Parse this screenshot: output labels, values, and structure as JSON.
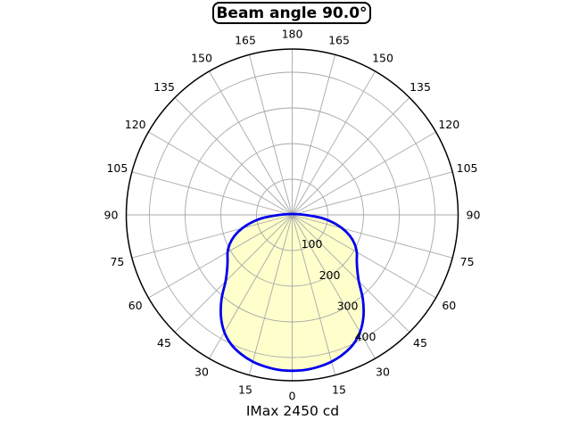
{
  "title_box": {
    "label": "Beam angle 90.0°"
  },
  "footer": {
    "label": "IMax 2450 cd"
  },
  "chart_data": {
    "type": "line",
    "subtype": "polar-photometric-distribution",
    "title": "Beam angle 90.0°",
    "annotation": "IMax 2450 cd",
    "imax_cd": 2450,
    "beam_angle_deg": 90.0,
    "angle_tick_step_deg": 15,
    "angle_labels_deg": [
      0,
      15,
      30,
      45,
      60,
      75,
      90,
      105,
      120,
      135,
      150,
      165,
      180
    ],
    "radial_ticks": [
      100,
      200,
      300,
      400
    ],
    "radial_tick_labels": [
      "100",
      "200",
      "300",
      "400"
    ],
    "radial_max": 465,
    "radial_label_angle_deg": 30,
    "grid": true,
    "legend": false,
    "series": [
      {
        "name": "luminous-intensity",
        "mirrored": true,
        "gamma_deg": [
          0,
          5,
          10,
          15,
          20,
          25,
          30,
          35,
          40,
          45,
          50,
          55,
          60,
          65,
          70,
          75,
          80,
          85,
          90
        ],
        "values": [
          437,
          436,
          432,
          426,
          416,
          402,
          380,
          348,
          308,
          264,
          238,
          221,
          209,
          193,
          172,
          145,
          112,
          74,
          0
        ]
      }
    ],
    "colors": {
      "curve": "#0000ee",
      "fill": "#ffffcc",
      "grid": "#a8a8a8",
      "axis": "#000000",
      "text": "#000000",
      "background": "#ffffff"
    }
  }
}
